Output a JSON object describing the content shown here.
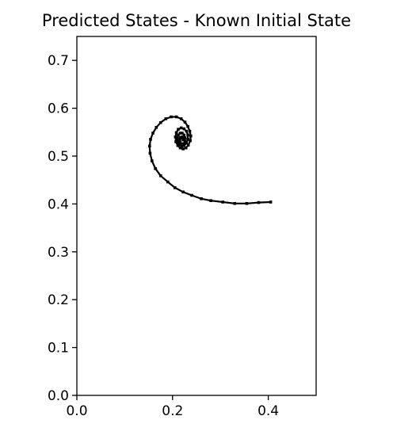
{
  "chart_data": {
    "type": "line",
    "title": "Predicted States - Known Initial State",
    "xlabel": "",
    "ylabel": "",
    "xlim": [
      0.0,
      0.5
    ],
    "ylim": [
      0.0,
      0.75
    ],
    "x_ticks": [
      "0.0",
      "0.2",
      "0.4"
    ],
    "y_ticks": [
      "0.0",
      "0.1",
      "0.2",
      "0.3",
      "0.4",
      "0.5",
      "0.6",
      "0.7"
    ],
    "grid": false,
    "legend": "none",
    "line_color": "#000000",
    "series": [
      {
        "name": "",
        "x": [
          0.405,
          0.38,
          0.355,
          0.33,
          0.305,
          0.28,
          0.26,
          0.24,
          0.222,
          0.205,
          0.19,
          0.175,
          0.164,
          0.157,
          0.153,
          0.152,
          0.154,
          0.159,
          0.166,
          0.175,
          0.186,
          0.197,
          0.208,
          0.218,
          0.226,
          0.232,
          0.236,
          0.238,
          0.237,
          0.233,
          0.228,
          0.222,
          0.216,
          0.211,
          0.207,
          0.206,
          0.208,
          0.212,
          0.218,
          0.224,
          0.229,
          0.232,
          0.232,
          0.229,
          0.224,
          0.219,
          0.214,
          0.211,
          0.21,
          0.212,
          0.216,
          0.22,
          0.224,
          0.226,
          0.226,
          0.223,
          0.219,
          0.216,
          0.215,
          0.216,
          0.219,
          0.221,
          0.222
        ],
        "y": [
          0.404,
          0.403,
          0.401,
          0.401,
          0.404,
          0.407,
          0.411,
          0.418,
          0.425,
          0.434,
          0.446,
          0.459,
          0.474,
          0.49,
          0.506,
          0.521,
          0.535,
          0.548,
          0.56,
          0.57,
          0.578,
          0.582,
          0.582,
          0.578,
          0.571,
          0.562,
          0.552,
          0.542,
          0.532,
          0.523,
          0.517,
          0.515,
          0.517,
          0.522,
          0.53,
          0.54,
          0.549,
          0.556,
          0.559,
          0.557,
          0.552,
          0.544,
          0.535,
          0.527,
          0.522,
          0.521,
          0.524,
          0.53,
          0.537,
          0.544,
          0.548,
          0.548,
          0.544,
          0.538,
          0.531,
          0.526,
          0.525,
          0.528,
          0.533,
          0.538,
          0.54,
          0.538,
          0.534
        ]
      }
    ]
  }
}
